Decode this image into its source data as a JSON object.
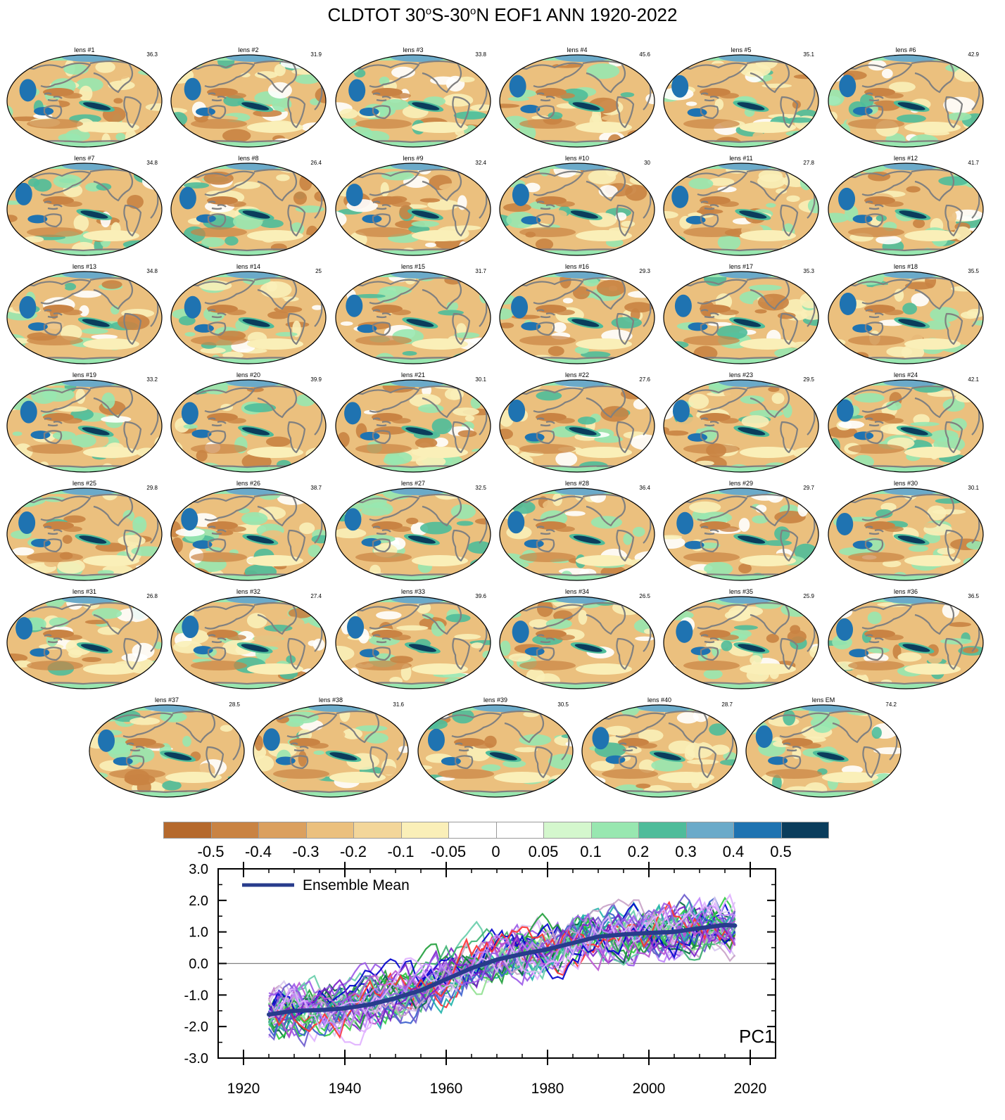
{
  "title": {
    "var": "CLDTOT",
    "lat1": "30",
    "deg": "o",
    "mid": "S-30",
    "lat2_suffix": "N EOF1 ANN 1920-2022"
  },
  "panels": [
    {
      "label": "lens #1",
      "pct": "36.3"
    },
    {
      "label": "lens #2",
      "pct": "31.9"
    },
    {
      "label": "lens #3",
      "pct": "33.8"
    },
    {
      "label": "lens #4",
      "pct": "45.6"
    },
    {
      "label": "lens #5",
      "pct": "35.1"
    },
    {
      "label": "lens #6",
      "pct": "42.9"
    },
    {
      "label": "lens #7",
      "pct": "34.8"
    },
    {
      "label": "lens #8",
      "pct": "26.4"
    },
    {
      "label": "lens #9",
      "pct": "32.4"
    },
    {
      "label": "lens #10",
      "pct": "30"
    },
    {
      "label": "lens #11",
      "pct": "27.8"
    },
    {
      "label": "lens #12",
      "pct": "41.7"
    },
    {
      "label": "lens #13",
      "pct": "34.8"
    },
    {
      "label": "lens #14",
      "pct": "25"
    },
    {
      "label": "lens #15",
      "pct": "31.7"
    },
    {
      "label": "lens #16",
      "pct": "29.3"
    },
    {
      "label": "lens #17",
      "pct": "35.3"
    },
    {
      "label": "lens #18",
      "pct": "35.5"
    },
    {
      "label": "lens #19",
      "pct": "33.2"
    },
    {
      "label": "lens #20",
      "pct": "39.9"
    },
    {
      "label": "lens #21",
      "pct": "30.1"
    },
    {
      "label": "lens #22",
      "pct": "27.6"
    },
    {
      "label": "lens #23",
      "pct": "29.5"
    },
    {
      "label": "lens #24",
      "pct": "42.1"
    },
    {
      "label": "lens #25",
      "pct": "29.8"
    },
    {
      "label": "lens #26",
      "pct": "38.7"
    },
    {
      "label": "lens #27",
      "pct": "32.5"
    },
    {
      "label": "lens #28",
      "pct": "36.4"
    },
    {
      "label": "lens #29",
      "pct": "29.7"
    },
    {
      "label": "lens #30",
      "pct": "30.1"
    },
    {
      "label": "lens #31",
      "pct": "26.8"
    },
    {
      "label": "lens #32",
      "pct": "27.4"
    },
    {
      "label": "lens #33",
      "pct": "39.6"
    },
    {
      "label": "lens #34",
      "pct": "26.5"
    },
    {
      "label": "lens #35",
      "pct": "25.9"
    },
    {
      "label": "lens #36",
      "pct": "36.5"
    },
    {
      "label": "lens #37",
      "pct": "28.5"
    },
    {
      "label": "lens #38",
      "pct": "31.6"
    },
    {
      "label": "lens #39",
      "pct": "30.5"
    },
    {
      "label": "lens #40",
      "pct": "28.7"
    },
    {
      "label": "lens EM",
      "pct": "74.2"
    }
  ],
  "colorbar": {
    "colors": [
      "#b5692d",
      "#c98343",
      "#dba05f",
      "#ebc07e",
      "#f3d69a",
      "#faefb8",
      "#ffffff",
      "#ffffff",
      "#d4f7cd",
      "#98e7b0",
      "#4fbc9a",
      "#6baac9",
      "#1f73b1",
      "#0b3d5c"
    ],
    "labels": [
      "-0.5",
      "-0.4",
      "-0.3",
      "-0.2",
      "-0.1",
      "-0.05",
      "0",
      "0.05",
      "0.1",
      "0.2",
      "0.3",
      "0.4",
      "0.5"
    ]
  },
  "map_colors": {
    "land": "#808080",
    "positive": "#1f73b1",
    "strong_positive": "#0b3d5c",
    "green": "#98e7b0",
    "teal": "#4fbc9a",
    "brown": "#c98343",
    "tan": "#ebc07e",
    "cream": "#faefb8"
  },
  "chart_data": {
    "type": "line",
    "legend": "Ensemble Mean",
    "annotation": "PC1",
    "xlim": [
      1915,
      2025
    ],
    "ylim": [
      -3.0,
      3.0
    ],
    "xticks": [
      1920,
      1940,
      1960,
      1980,
      2000,
      2020
    ],
    "yticks": [
      "3.0",
      "2.0",
      "1.0",
      "0.0",
      "-1.0",
      "-2.0",
      "-3.0"
    ],
    "member_colors": [
      "#7a1fc9",
      "#9b59e8",
      "#c084fc",
      "#e0b0ff",
      "#d8c8f0",
      "#006b3c",
      "#1f9e3a",
      "#2ecc40",
      "#8fe08f",
      "#3cb371",
      "#20b2aa",
      "#66cdaa",
      "#0000cd",
      "#3a5fcd",
      "#6a5acd",
      "#ba55d3",
      "#c8a2c8",
      "#ff3030"
    ],
    "ensemble_mean_color": "#283c8c",
    "ensemble_mean": {
      "x": [
        1925,
        1930,
        1935,
        1940,
        1945,
        1950,
        1955,
        1960,
        1965,
        1970,
        1975,
        1980,
        1985,
        1990,
        1995,
        2000,
        2005,
        2010,
        2015,
        2017
      ],
      "y": [
        -1.62,
        -1.5,
        -1.48,
        -1.42,
        -1.3,
        -1.1,
        -0.85,
        -0.5,
        -0.15,
        0.12,
        0.3,
        0.45,
        0.65,
        0.85,
        0.92,
        0.97,
        1.0,
        1.12,
        1.22,
        1.2
      ]
    }
  }
}
